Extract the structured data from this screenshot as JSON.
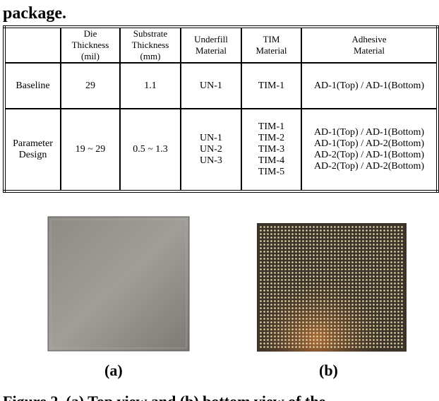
{
  "intro": "package.",
  "table": {
    "header": [
      [
        "Die",
        "Thickness",
        "(mil)"
      ],
      [
        "Substrate",
        "Thickness",
        "(mm)"
      ],
      [
        "Underfill",
        "Material"
      ],
      [
        "TIM",
        "Material"
      ],
      [
        "Adhesive",
        "Material"
      ]
    ],
    "rows": [
      {
        "label": [
          "Baseline"
        ],
        "cells": [
          [
            "29"
          ],
          [
            "1.1"
          ],
          [
            "UN-1"
          ],
          [
            "TIM-1"
          ],
          [
            "AD-1(Top) / AD-1(Bottom)"
          ]
        ]
      },
      {
        "label": [
          "Parameter",
          "Design"
        ],
        "cells": [
          [
            "19 ~ 29"
          ],
          [
            "0.5 ~ 1.3"
          ],
          [
            "UN-1",
            "UN-2",
            "UN-3"
          ],
          [
            "TIM-1",
            "TIM-2",
            "TIM-3",
            "TIM-4",
            "TIM-5"
          ],
          [
            "AD-1(Top) / AD-1(Bottom)",
            "AD-1(Top) / AD-2(Bottom)",
            "AD-2(Top) / AD-1(Bottom)",
            "AD-2(Top) / AD-2(Bottom)"
          ]
        ]
      }
    ]
  },
  "figure": {
    "label_a": "(a)",
    "label_b": "(b)",
    "caption": "Figure 2. (a) Top view and (b) bottom view of the"
  }
}
